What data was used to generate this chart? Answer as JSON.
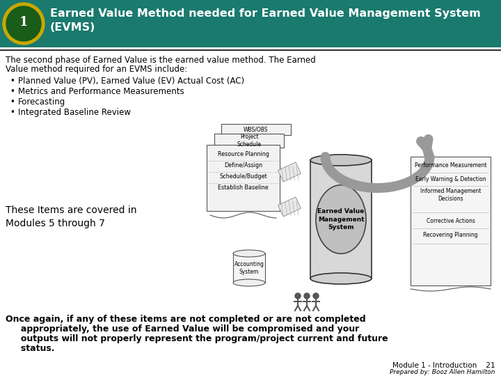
{
  "bg_color": "#ffffff",
  "header_bg": "#1a7a6e",
  "header_text_color": "#ffffff",
  "header_title": "Earned Value Method needed for Earned Value Management System\n(EVMS)",
  "header_fontsize": 11.5,
  "body_text_color": "#000000",
  "intro_line1": "The second phase of Earned Value is the earned value method. The Earned",
  "intro_line2": "Value method required for an EVMS include:",
  "bullets": [
    "Planned Value (PV), Earned Value (EV) Actual Cost (AC)",
    "Metrics and Performance Measurements",
    "Forecasting",
    "Integrated Baseline Review"
  ],
  "covered_text": "These Items are covered in\nModules 5 through 7",
  "closing_line1": "Once again, if any of these items are not completed or are not completed",
  "closing_line2": "     appropriately, the use of Earned Value will be compromised and your",
  "closing_line3": "     outputs will not properly represent the program/project current and future",
  "closing_line4": "     status.",
  "footer_right": "Module 1 - Introduction    21",
  "footer_sub": "Prepared by: Booz Allen Hamilton",
  "separator_color": "#000000",
  "header_color": "#1a7a6e",
  "logo_gold": "#c8a800",
  "logo_green": "#1a5c1a",
  "diagram_left_box_lines": [
    "Resource Planning",
    "Define/Assign",
    "Schedule/Budget",
    "Establish Baseline"
  ],
  "diagram_right_lines": [
    "Performance Measurement",
    "Early Warning & Detection",
    "Informed Management\nDecisions",
    "Corrective Actions",
    "Recovering Planning"
  ],
  "evms_label": "Earned Value\nManagement\nSystem",
  "acct_label": "Accounting\nSystem",
  "wbs_label": "WBS/OBS",
  "proj_sched_label": "Project\nSchedule"
}
